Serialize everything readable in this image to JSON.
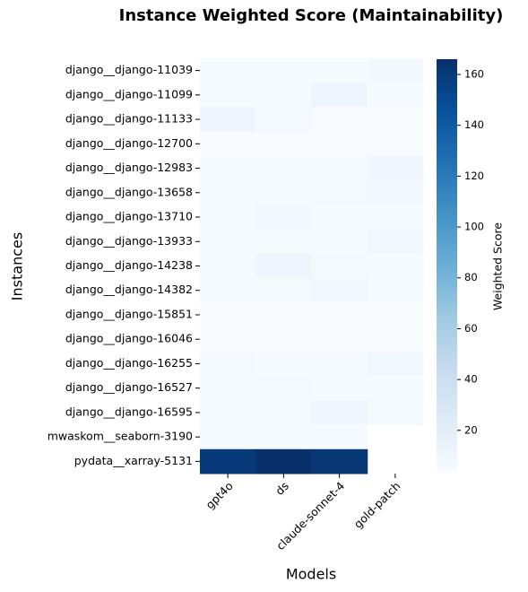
{
  "chart_data": {
    "type": "heatmap",
    "title": "Instance Weighted Score (Maintainability)",
    "x_label": "Models",
    "y_label": "Instances",
    "colorbar_label": "Weighted Score",
    "x_categories": [
      "gpt4o",
      "ds",
      "claude-sonnet-4",
      "gold-patch"
    ],
    "y_categories": [
      "django__django-11039",
      "django__django-11099",
      "django__django-11133",
      "django__django-12700",
      "django__django-12983",
      "django__django-13658",
      "django__django-13710",
      "django__django-13933",
      "django__django-14238",
      "django__django-14382",
      "django__django-15851",
      "django__django-16046",
      "django__django-16255",
      "django__django-16527",
      "django__django-16595",
      "mwaskom__seaborn-3190",
      "pydata__xarray-5131"
    ],
    "values": [
      [
        5,
        5,
        5,
        8
      ],
      [
        5,
        5,
        11,
        5
      ],
      [
        12,
        6,
        4,
        4
      ],
      [
        4,
        4,
        4,
        4
      ],
      [
        5,
        5,
        5,
        10
      ],
      [
        5,
        6,
        6,
        7
      ],
      [
        5,
        8,
        5,
        5
      ],
      [
        5,
        5,
        5,
        9
      ],
      [
        5,
        11,
        6,
        5
      ],
      [
        5,
        6,
        7,
        5
      ],
      [
        4,
        4,
        4,
        4
      ],
      [
        4,
        4,
        4,
        4
      ],
      [
        6,
        5,
        5,
        9
      ],
      [
        6,
        6,
        5,
        5
      ],
      [
        5,
        5,
        10,
        6
      ],
      [
        5,
        5,
        5,
        null
      ],
      [
        160,
        166,
        162,
        null
      ]
    ],
    "clim": [
      3.7,
      166
    ],
    "cbar_ticks": [
      20,
      40,
      60,
      80,
      100,
      120,
      140,
      160
    ],
    "colors": [
      "#f7fbff",
      "#deebf7",
      "#c6dbef",
      "#9ecae1",
      "#6baed6",
      "#4292c6",
      "#2171b5",
      "#08519c",
      "#08306b"
    ]
  }
}
